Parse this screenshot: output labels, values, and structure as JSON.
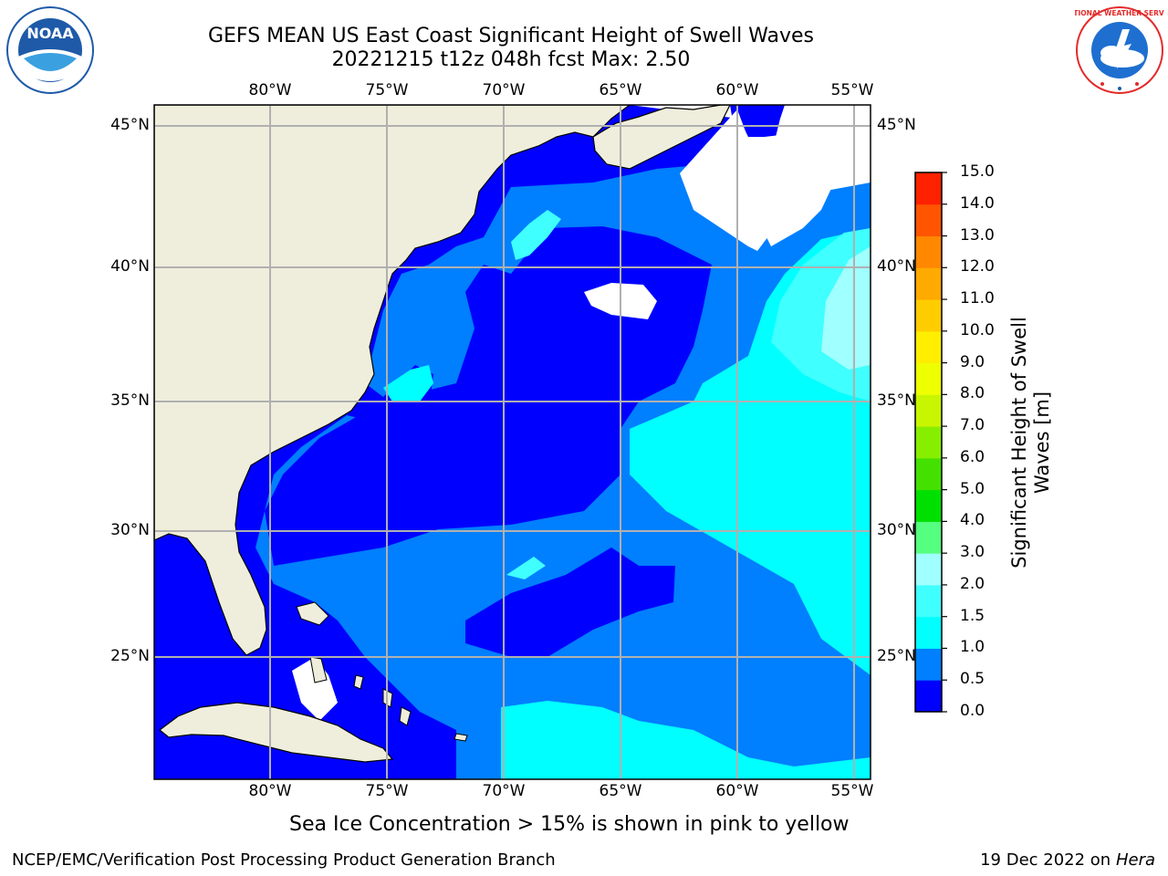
{
  "title": {
    "line1": "GEFS MEAN US East Coast Significant Height of Swell Waves",
    "line2": "20221215 t12z 048h fcst   Max: 2.50"
  },
  "logos": {
    "left": {
      "text": "NOAA",
      "color": "#1e5aa8"
    },
    "right": {
      "text": "NATIONAL WEATHER SERVICE",
      "color": "#e32b2b"
    }
  },
  "map": {
    "lon_labels": [
      "80°W",
      "75°W",
      "70°W",
      "65°W",
      "60°W",
      "55°W"
    ],
    "lat_labels": [
      "45°N",
      "40°N",
      "35°N",
      "30°N",
      "25°N"
    ],
    "land_color": "#efeedc",
    "no_data_color": "#ffffff"
  },
  "colorbar": {
    "label_line1": "Significant Height of Swell",
    "label_line2": "Waves [m]",
    "ticks": [
      "0.0",
      "0.5",
      "1.0",
      "1.5",
      "2.0",
      "3.0",
      "4.0",
      "5.0",
      "6.0",
      "7.0",
      "8.0",
      "9.0",
      "10.0",
      "11.0",
      "12.0",
      "13.0",
      "14.0",
      "15.0"
    ],
    "colors": [
      "#0000ff",
      "#007fff",
      "#00ffff",
      "#40ffff",
      "#a0ffff",
      "#55ff7f",
      "#00e000",
      "#44e000",
      "#88ee00",
      "#c8f500",
      "#eeff00",
      "#ffee00",
      "#ffcc00",
      "#ffaa00",
      "#ff8800",
      "#ff5500",
      "#ff2200",
      "#ff0000"
    ]
  },
  "note": "Sea Ice Concentration > 15% is shown in pink to yellow",
  "footer": {
    "left": "NCEP/EMC/Verification Post Processing Product Generation Branch",
    "date": "19 Dec 2022 on",
    "machine": "Hera"
  }
}
